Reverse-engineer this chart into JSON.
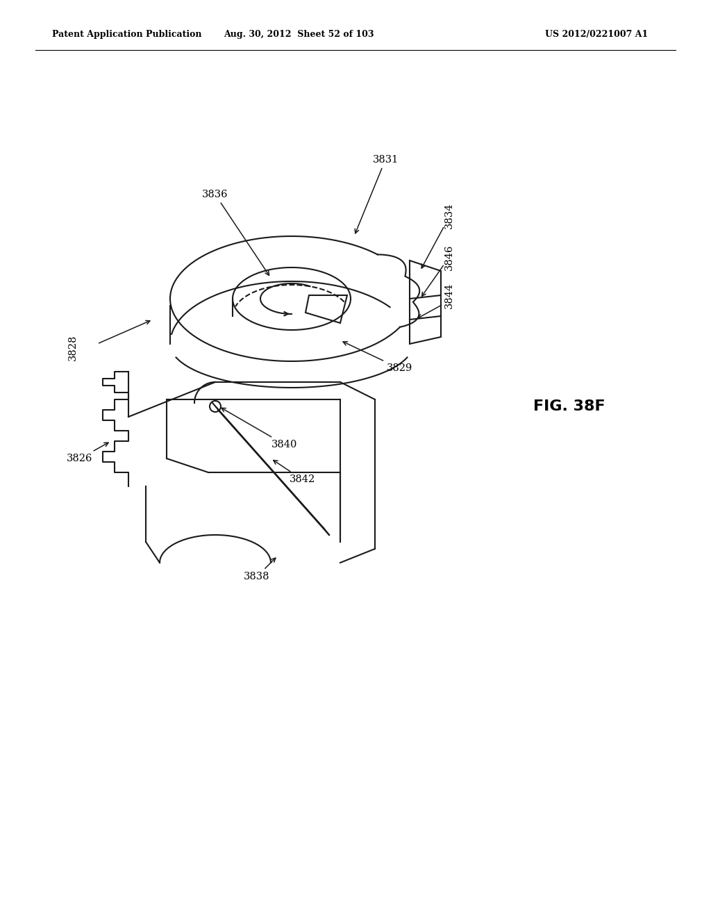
{
  "header_left": "Patent Application Publication",
  "header_mid": "Aug. 30, 2012  Sheet 52 of 103",
  "header_right": "US 2012/0221007 A1",
  "fig_label": "FIG. 38F",
  "bg_color": "#ffffff",
  "line_color": "#1a1a1a"
}
